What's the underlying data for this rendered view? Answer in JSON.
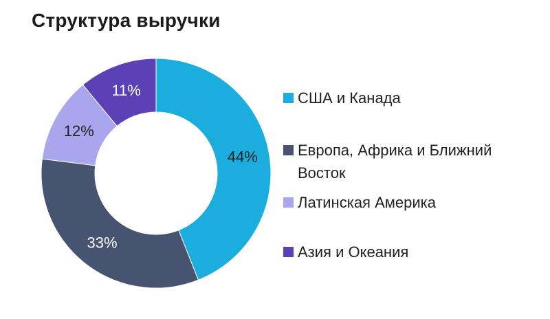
{
  "title": "Структура выручки",
  "chart_data": {
    "type": "pie",
    "donut": true,
    "title": "Структура выручки",
    "categories": [
      "США и Канада",
      "Европа, Африка и Ближний Восток",
      "Латинская Америка",
      "Азия и Океания"
    ],
    "values": [
      44,
      33,
      12,
      11
    ],
    "labels": [
      "44%",
      "33%",
      "12%",
      "11%"
    ],
    "colors": [
      "#1badde",
      "#465471",
      "#a8a6ed",
      "#5b40b6"
    ],
    "label_colors": [
      "#1f1f1f",
      "#ffffff",
      "#1f1f1f",
      "#ffffff"
    ],
    "legend_position": "right"
  }
}
